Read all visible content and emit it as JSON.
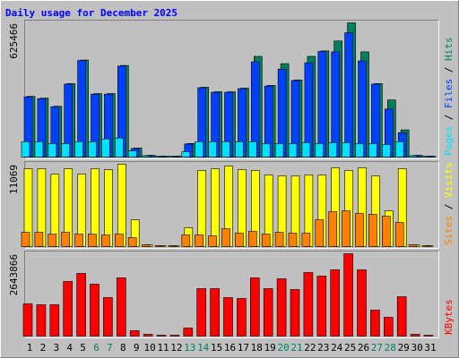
{
  "chart_data": [
    {
      "type": "bar",
      "title": "Daily usage for December 2025",
      "ylim": [
        0,
        625466
      ],
      "yticks": [
        625466
      ],
      "legend_separator": " / ",
      "legend_order": [
        2,
        1,
        0
      ],
      "series": [
        {
          "name": "Hits",
          "color": "#00805c",
          "values": [
            280830,
            272320,
            234025,
            340400,
            451030,
            293595,
            293595,
            425500,
            38295,
            4255,
            0,
            0,
            59570,
            323380,
            302105,
            302105,
            319125,
            468050,
            331890,
            434010,
            357420,
            468050,
            493580,
            540385,
            625466,
            489325,
            340400,
            263810,
            123395,
            4255,
            0
          ]
        },
        {
          "name": "Files",
          "color": "#0040ff",
          "values": [
            278000,
            270000,
            232000,
            338000,
            449000,
            291000,
            291000,
            423000,
            36000,
            3000,
            0,
            0,
            57000,
            321000,
            300000,
            300000,
            317000,
            442520,
            329000,
            408480,
            355000,
            438265,
            491000,
            489325,
            578680,
            446775,
            338000,
            221260,
            110630,
            3000,
            0
          ]
        },
        {
          "name": "Pages",
          "color": "#00e0ff",
          "values": [
            68000,
            68000,
            59000,
            59000,
            68000,
            68000,
            81000,
            85000,
            25000,
            2000,
            0,
            0,
            21000,
            68000,
            68000,
            68000,
            68000,
            68000,
            59000,
            59000,
            59000,
            64000,
            59000,
            64000,
            64000,
            59000,
            59000,
            55000,
            68000,
            2000,
            0
          ]
        }
      ]
    },
    {
      "type": "bar",
      "ylim": [
        0,
        11069
      ],
      "yticks": [
        11069
      ],
      "legend_separator": " / ",
      "legend_order": [
        1,
        0
      ],
      "series": [
        {
          "name": "Visits",
          "color": "#ffff00",
          "values": [
            10458,
            10458,
            9728,
            10458,
            9728,
            10458,
            10336,
            11069,
            3526,
            122,
            0,
            0,
            2432,
            10214,
            10458,
            10822,
            10336,
            10214,
            9606,
            9485,
            9485,
            9606,
            9606,
            10579,
            10214,
            10579,
            9485,
            4742,
            10458,
            122,
            0
          ]
        },
        {
          "name": "Sites",
          "color": "#ff8000",
          "values": [
            1824,
            1824,
            1581,
            1824,
            1581,
            1581,
            1459,
            1581,
            1094,
            122,
            0,
            0,
            1459,
            1459,
            1338,
            2310,
            1702,
            1946,
            1581,
            1824,
            1702,
            1702,
            3526,
            4621,
            4742,
            4378,
            4256,
            4013,
            3162,
            122,
            0
          ]
        }
      ]
    },
    {
      "type": "bar",
      "ylim": [
        0,
        2643866
      ],
      "yticks": [
        2643866
      ],
      "legend_order": [
        0
      ],
      "categories": [
        "1",
        "2",
        "3",
        "4",
        "5",
        "6",
        "7",
        "8",
        "9",
        "10",
        "11",
        "12",
        "13",
        "14",
        "15",
        "16",
        "17",
        "18",
        "19",
        "20",
        "21",
        "22",
        "23",
        "24",
        "25",
        "26",
        "27",
        "28",
        "29",
        "30",
        "31"
      ],
      "category_colors": [
        "#000000",
        "#000000",
        "#000000",
        "#000000",
        "#000000",
        "#00805c",
        "#00805c",
        "#000000",
        "#000000",
        "#000000",
        "#000000",
        "#000000",
        "#00805c",
        "#00805c",
        "#000000",
        "#000000",
        "#000000",
        "#000000",
        "#000000",
        "#00805c",
        "#00805c",
        "#000000",
        "#000000",
        "#000000",
        "#000000",
        "#000000",
        "#00805c",
        "#00805c",
        "#000000",
        "#000000",
        "#000000"
      ],
      "series": [
        {
          "name": "KBytes",
          "color": "#ff0000",
          "values": [
            1016855,
            987802,
            987802,
            1743180,
            2004657,
            1656021,
            1220226,
            1859392,
            145265,
            29053,
            0,
            0,
            232424,
            1510756,
            1510756,
            1220226,
            1191173,
            1859392,
            1510756,
            1830339,
            1481703,
            2033710,
            1917498,
            2120869,
            2643866,
            2120869,
            813484,
            581060,
            1249279,
            29053,
            0
          ]
        }
      ]
    }
  ]
}
